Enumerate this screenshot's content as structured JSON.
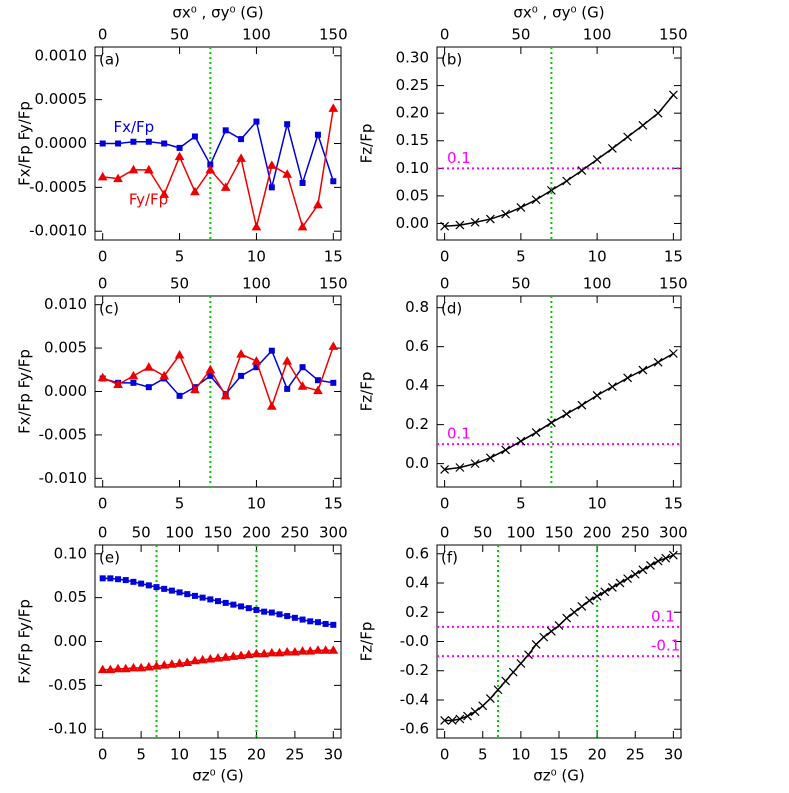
{
  "chart_data": [
    {
      "type": "line",
      "panel_label": "(a)",
      "ylabel": "Fx/Fp  Fy/Fp",
      "x2label": "σx⁰ , σy⁰ (G)",
      "x": [
        0,
        1,
        2,
        3,
        4,
        5,
        6,
        7,
        8,
        9,
        10,
        11,
        12,
        13,
        14,
        15
      ],
      "xlim": [
        -0.5,
        15.5
      ],
      "xticks": [
        0,
        5,
        10,
        15
      ],
      "x2lim": [
        -5,
        155
      ],
      "x2ticks": [
        0,
        50,
        100,
        150
      ],
      "ylim": [
        -0.0011,
        0.0011
      ],
      "yticks": [
        {
          "value": 0.001,
          "label": "0.0010"
        },
        {
          "value": 0.0005,
          "label": "0.0005"
        },
        {
          "value": 0,
          "label": "0.0000"
        },
        {
          "value": -0.0005,
          "label": "-0.0005"
        },
        {
          "value": -0.001,
          "label": "-0.0010"
        }
      ],
      "inline_labels": true,
      "vlines": [
        7
      ],
      "vline_color": "#00cc00",
      "series": [
        {
          "name": "Fx/Fp",
          "color": "#0000dd",
          "marker": "square",
          "values": [
            0,
            0,
            2e-05,
            2e-05,
            0,
            -5e-05,
            8e-05,
            -0.00024,
            0.00015,
            5e-05,
            0.00025,
            -0.0005,
            0.00022,
            -0.00045,
            0.0001,
            -0.00043
          ]
        },
        {
          "name": "Fy/Fp",
          "color": "#ee0000",
          "marker": "triangle",
          "values": [
            -0.00038,
            -0.0004,
            -0.0003,
            -0.0003,
            -0.00058,
            -0.00015,
            -0.00055,
            -0.0003,
            -0.0005,
            -0.00017,
            -0.00095,
            -0.00025,
            -0.00035,
            -0.00095,
            -0.0007,
            0.0004
          ]
        }
      ]
    },
    {
      "type": "line",
      "panel_label": "(b)",
      "ylabel": "Fz/Fp",
      "x2label": "σx⁰ , σy⁰ (G)",
      "x": [
        0,
        1,
        2,
        3,
        4,
        5,
        6,
        7,
        8,
        9,
        10,
        11,
        12,
        13,
        14,
        15
      ],
      "xlim": [
        -0.5,
        15.5
      ],
      "xticks": [
        0,
        5,
        10,
        15
      ],
      "x2lim": [
        -5,
        155
      ],
      "x2ticks": [
        0,
        50,
        100,
        150
      ],
      "ylim": [
        -0.03,
        0.32
      ],
      "yticks": [
        {
          "value": 0.3,
          "label": "0.30"
        },
        0.25,
        {
          "value": 0.2,
          "label": "0.20"
        },
        0.15,
        {
          "value": 0.1,
          "label": "0.10"
        },
        0.05,
        {
          "value": 0,
          "label": "0.00"
        }
      ],
      "vlines": [
        7
      ],
      "vline_color": "#00cc00",
      "hlines": [
        0.1
      ],
      "hline_color": "#ff00ff",
      "series": [
        {
          "name": "Fz/Fp",
          "color": "#000000",
          "marker": "x",
          "values": [
            -0.005,
            -0.003,
            0.002,
            0.008,
            0.017,
            0.029,
            0.043,
            0.06,
            0.077,
            0.096,
            0.116,
            0.136,
            0.157,
            0.178,
            0.2,
            0.233
          ]
        }
      ]
    },
    {
      "type": "line",
      "panel_label": "(c)",
      "ylabel": "Fx/Fp  Fy/Fp",
      "x": [
        0,
        1,
        2,
        3,
        4,
        5,
        6,
        7,
        8,
        9,
        10,
        11,
        12,
        13,
        14,
        15
      ],
      "xlim": [
        -0.5,
        15.5
      ],
      "xticks": [
        0,
        5,
        10,
        15
      ],
      "x2lim": [
        -5,
        155
      ],
      "x2ticks": [
        0,
        50,
        100,
        150
      ],
      "ylim": [
        -0.011,
        0.011
      ],
      "yticks": [
        {
          "value": 0.01,
          "label": "0.010"
        },
        0.005,
        {
          "value": 0,
          "label": "0.000"
        },
        -0.005,
        {
          "value": -0.01,
          "label": "-0.010"
        }
      ],
      "vlines": [
        7
      ],
      "vline_color": "#00cc00",
      "series": [
        {
          "color": "#0000dd",
          "marker": "square",
          "values": [
            0.0015,
            0.001,
            0.001,
            0.0005,
            0.0015,
            -0.0005,
            0.0005,
            0.0018,
            -0.0003,
            0.0018,
            0.0028,
            0.0047,
            0.0003,
            0.0028,
            0.0013,
            0.001
          ]
        },
        {
          "color": "#ee0000",
          "marker": "triangle",
          "values": [
            0.0016,
            0.0008,
            0.0018,
            0.0028,
            0.0018,
            0.0042,
            0.0002,
            0.0025,
            -0.0005,
            0.0043,
            0.0035,
            -0.0017,
            0.0035,
            0.0006,
            0.0001,
            0.0052
          ]
        }
      ]
    },
    {
      "type": "line",
      "panel_label": "(d)",
      "ylabel": "Fz/Fp",
      "x": [
        0,
        1,
        2,
        3,
        4,
        5,
        6,
        7,
        8,
        9,
        10,
        11,
        12,
        13,
        14,
        15
      ],
      "xlim": [
        -0.5,
        15.5
      ],
      "xticks": [
        0,
        5,
        10,
        15
      ],
      "x2lim": [
        -5,
        155
      ],
      "x2ticks": [
        0,
        50,
        100,
        150
      ],
      "ylim": [
        -0.12,
        0.86
      ],
      "yticks": [
        0.8,
        0.6,
        0.4,
        0.2,
        {
          "value": 0,
          "label": "0.0"
        }
      ],
      "vlines": [
        7
      ],
      "vline_color": "#00cc00",
      "hlines": [
        0.1
      ],
      "hline_color": "#ff00ff",
      "series": [
        {
          "color": "#000000",
          "marker": "x",
          "values": [
            -0.03,
            -0.02,
            0,
            0.03,
            0.07,
            0.115,
            0.16,
            0.21,
            0.255,
            0.3,
            0.35,
            0.395,
            0.44,
            0.48,
            0.52,
            0.565
          ]
        }
      ]
    },
    {
      "type": "line",
      "panel_label": "(e)",
      "ylabel": "Fx/Fp  Fy/Fp",
      "xlabel": "σz⁰ (G)",
      "x": [
        0,
        1,
        2,
        3,
        4,
        5,
        6,
        7,
        8,
        9,
        10,
        11,
        12,
        13,
        14,
        15,
        16,
        17,
        18,
        19,
        20,
        21,
        22,
        23,
        24,
        25,
        26,
        27,
        28,
        29,
        30
      ],
      "xlim": [
        -1,
        31
      ],
      "xticks": [
        0,
        5,
        10,
        15,
        20,
        25,
        30
      ],
      "x2lim": [
        -10,
        310
      ],
      "x2ticks": [
        0,
        50,
        100,
        150,
        200,
        250,
        300
      ],
      "ylim": [
        -0.11,
        0.11
      ],
      "yticks": [
        {
          "value": 0.1,
          "label": "0.10"
        },
        0.05,
        {
          "value": 0,
          "label": "0.00"
        },
        -0.05,
        {
          "value": -0.1,
          "label": "-0.10"
        }
      ],
      "vlines": [
        7,
        20
      ],
      "vline_color": "#00cc00",
      "series": [
        {
          "color": "#0000dd",
          "marker": "square",
          "values": [
            0.072,
            0.072,
            0.071,
            0.07,
            0.068,
            0.066,
            0.064,
            0.062,
            0.06,
            0.058,
            0.056,
            0.054,
            0.052,
            0.05,
            0.048,
            0.046,
            0.044,
            0.042,
            0.04,
            0.038,
            0.036,
            0.034,
            0.033,
            0.031,
            0.029,
            0.027,
            0.025,
            0.023,
            0.022,
            0.02,
            0.019
          ]
        },
        {
          "color": "#ee0000",
          "marker": "triangle",
          "values": [
            -0.032,
            -0.032,
            -0.031,
            -0.031,
            -0.03,
            -0.03,
            -0.029,
            -0.028,
            -0.027,
            -0.026,
            -0.025,
            -0.024,
            -0.022,
            -0.021,
            -0.02,
            -0.019,
            -0.018,
            -0.017,
            -0.016,
            -0.015,
            -0.014,
            -0.014,
            -0.013,
            -0.013,
            -0.012,
            -0.012,
            -0.011,
            -0.011,
            -0.01,
            -0.01,
            -0.01
          ]
        }
      ]
    },
    {
      "type": "line",
      "panel_label": "(f)",
      "ylabel": "Fz/Fp",
      "xlabel": "σz⁰ (G)",
      "x": [
        0,
        1,
        2,
        3,
        4,
        5,
        6,
        7,
        8,
        9,
        10,
        11,
        12,
        13,
        14,
        15,
        16,
        17,
        18,
        19,
        20,
        21,
        22,
        23,
        24,
        25,
        26,
        27,
        28,
        29,
        30
      ],
      "xlim": [
        -1,
        31
      ],
      "xticks": [
        0,
        5,
        10,
        15,
        20,
        25,
        30
      ],
      "x2lim": [
        -10,
        310
      ],
      "x2ticks": [
        0,
        50,
        100,
        150,
        200,
        250,
        300
      ],
      "ylim": [
        -0.66,
        0.66
      ],
      "yticks": [
        0.6,
        0.4,
        0.2,
        {
          "value": 0,
          "label": "-0.0"
        },
        -0.2,
        -0.4,
        -0.6
      ],
      "vlines": [
        7,
        20
      ],
      "vline_color": "#00cc00",
      "hlines": [
        0.1,
        -0.1
      ],
      "hline_color": "#ff00ff",
      "series": [
        {
          "color": "#000000",
          "marker": "x",
          "values": [
            -0.54,
            -0.54,
            -0.53,
            -0.51,
            -0.48,
            -0.44,
            -0.39,
            -0.33,
            -0.27,
            -0.21,
            -0.15,
            -0.09,
            -0.02,
            0.03,
            0.07,
            0.11,
            0.16,
            0.2,
            0.24,
            0.28,
            0.31,
            0.34,
            0.37,
            0.4,
            0.43,
            0.46,
            0.49,
            0.52,
            0.55,
            0.57,
            0.59
          ]
        }
      ]
    }
  ]
}
